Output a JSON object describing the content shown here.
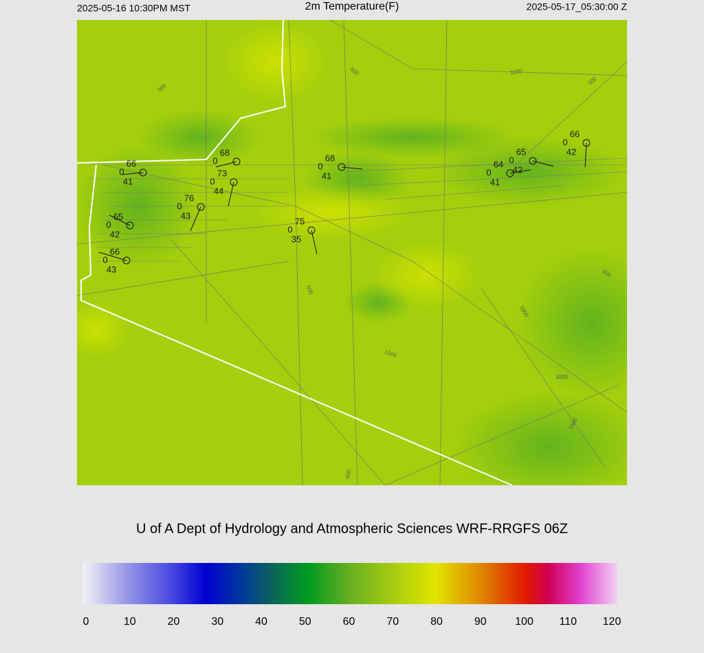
{
  "header": {
    "left": "2025-05-16 10:30PM MST",
    "title": "2m Temperature(F)",
    "right": "2025-05-17_05:30:00 Z"
  },
  "stations": [
    {
      "temp": 66,
      "wind": 0,
      "dewpoint": 41
    },
    {
      "temp": 68,
      "wind": 0
    },
    {
      "temp": 73,
      "wind": 0,
      "dewpoint": 44
    },
    {
      "temp": 76,
      "wind": 0,
      "dewpoint": 43
    },
    {
      "temp": 65,
      "wind": 0,
      "dewpoint": 42
    },
    {
      "temp": 66,
      "wind": 0,
      "dewpoint": 43
    },
    {
      "temp": 75,
      "wind": 0,
      "dewpoint": 35
    },
    {
      "temp": 68,
      "wind": 0,
      "dewpoint": 41
    },
    {
      "temp": 64,
      "wind": 0,
      "dewpoint": 41
    },
    {
      "temp": 65,
      "wind": 0,
      "dewpoint": 42
    },
    {
      "temp": 66,
      "wind": 0,
      "dewpoint": 42
    }
  ],
  "contour_labels": [
    500,
    1000,
    500,
    500,
    500,
    1000,
    1000,
    1000,
    500,
    1500,
    500
  ],
  "credit": "U of A Dept of Hydrology and Atmospheric Sciences WRF-RRGFS 06Z",
  "colorbar": {
    "ticks": [
      0,
      10,
      20,
      30,
      40,
      50,
      60,
      70,
      80,
      90,
      100,
      110,
      120
    ],
    "lim": [
      0,
      120
    ]
  }
}
